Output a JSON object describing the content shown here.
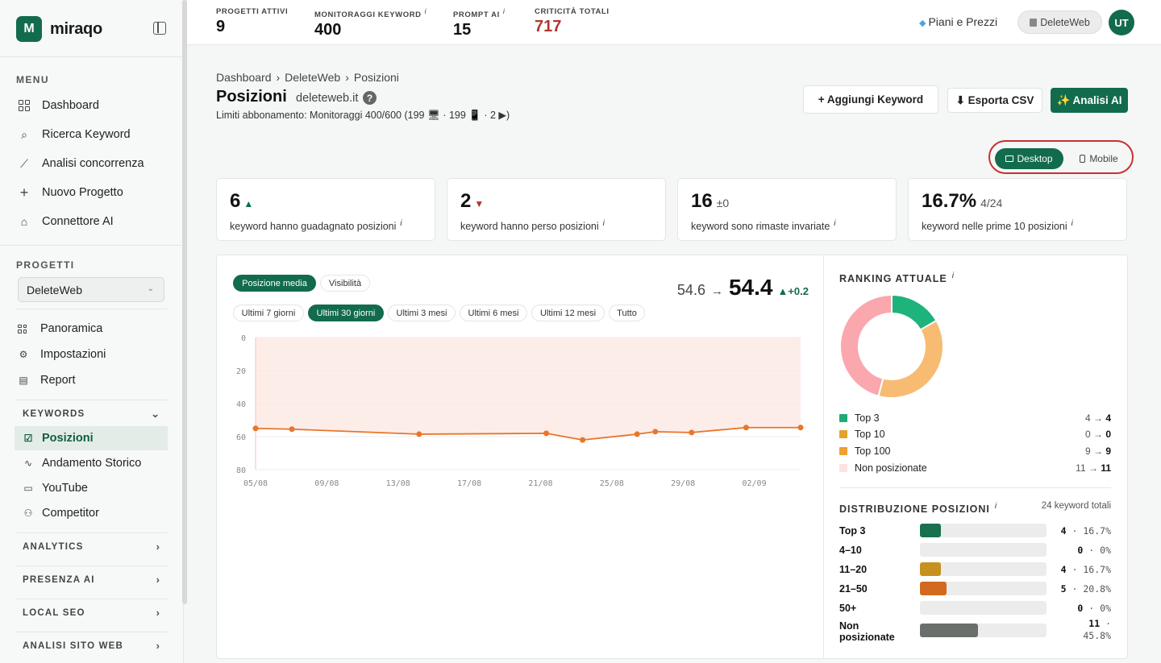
{
  "app": {
    "name": "miraqo"
  },
  "sidebar": {
    "menu_title": "MENU",
    "menu": [
      {
        "label": "Dashboard",
        "icon": "grid-icon"
      },
      {
        "label": "Ricerca Keyword",
        "icon": "search-icon"
      },
      {
        "label": "Analisi concorrenza",
        "icon": "trend-chart-icon"
      },
      {
        "label": "Nuovo Progetto",
        "icon": "plus-icon"
      },
      {
        "label": "Connettore AI",
        "icon": "robot-icon"
      }
    ],
    "projects_title": "PROGETTI",
    "project_selected": "DeleteWeb",
    "project_items": [
      {
        "label": "Panoramica",
        "icon": "grid-icon"
      },
      {
        "label": "Impostazioni",
        "icon": "gear-icon"
      },
      {
        "label": "Report",
        "icon": "document-icon"
      }
    ],
    "keywords_group": "KEYWORDS",
    "keyword_items": [
      {
        "label": "Posizioni",
        "icon": "check-square-icon",
        "active": true
      },
      {
        "label": "Andamento Storico",
        "icon": "pulse-icon"
      },
      {
        "label": "YouTube",
        "icon": "youtube-icon"
      },
      {
        "label": "Competitor",
        "icon": "users-icon"
      }
    ],
    "groups": [
      "ANALYTICS",
      "PRESENZA AI",
      "LOCAL SEO",
      "ANALISI SITO WEB"
    ]
  },
  "topbar": {
    "stats": [
      {
        "label": "PROGETTI ATTIVI",
        "value": "9",
        "info": ""
      },
      {
        "label": "MONITORAGGI KEYWORD",
        "value": "400",
        "info": "i"
      },
      {
        "label": "PROMPT AI",
        "value": "15",
        "info": "i"
      },
      {
        "label": "CRITICITÀ TOTALI",
        "value": "717",
        "info": ""
      }
    ],
    "plans": "Piani e Prezzi",
    "project": "DeleteWeb",
    "avatar": "UT"
  },
  "page": {
    "breadcrumb": [
      "Dashboard",
      "›",
      "DeleteWeb",
      "›",
      "Posizioni"
    ],
    "title": "Posizioni",
    "domain": "deleteweb.it",
    "help": "?",
    "limits": "Limiti abbonamento: Monitoraggi 400/600 (199 🖥 · 199 📱 · 2 ▶)",
    "buttons": {
      "add": "+ Aggiungi Keyword",
      "export": "⬇ Esporta CSV",
      "ai": "✨ Analisi AI"
    },
    "device": {
      "desktop": "Desktop",
      "mobile": "Mobile"
    }
  },
  "cards": [
    {
      "value": "6",
      "extra": "",
      "trend": "up",
      "desc": "keyword hanno guadagnato posizioni"
    },
    {
      "value": "2",
      "extra": "",
      "trend": "down",
      "desc": "keyword hanno perso posizioni"
    },
    {
      "value": "16",
      "extra": "±0",
      "trend": "",
      "desc": "keyword sono rimaste invariate"
    },
    {
      "value": "16.7%",
      "extra": "4/24",
      "trend": "",
      "desc": "keyword nelle prime 10 posizioni"
    }
  ],
  "chart_panel": {
    "metric_tabs": [
      "Posizione media",
      "Visibilità"
    ],
    "ranges": [
      "Ultimi 7 giorni",
      "Ultimi 30 giorni",
      "Ultimi 3 mesi",
      "Ultimi 6 mesi",
      "Ultimi 12 mesi",
      "Tutto"
    ],
    "from": "54.6",
    "arrow": "→",
    "to": "54.4",
    "delta": "▲+0.2"
  },
  "chart_data": {
    "type": "line",
    "x_ticks": [
      "05/08",
      "09/08",
      "13/08",
      "17/08",
      "21/08",
      "25/08",
      "29/08",
      "02/09"
    ],
    "y_ticks": [
      "0",
      "20",
      "40",
      "60",
      "80"
    ],
    "ylim": [
      0,
      80
    ],
    "y_inverted": true,
    "xlim": [
      0,
      30
    ],
    "series": [
      {
        "x": [
          0,
          2,
          9,
          16,
          18,
          21,
          22,
          24,
          27,
          30
        ],
        "y": [
          55,
          55.5,
          58.5,
          58,
          62,
          58.5,
          57,
          57.5,
          54.5,
          54.5
        ]
      }
    ],
    "line_color": "#e8762b",
    "fill_color": "#fde8e2"
  },
  "ranking": {
    "title": "RANKING ATTUALE",
    "info": "i",
    "legend": [
      {
        "label": "Top 3",
        "from": "4",
        "to": "4",
        "color": "#1faa78"
      },
      {
        "label": "Top 10",
        "from": "0",
        "to": "0",
        "color": "#e3a22a"
      },
      {
        "label": "Top 100",
        "from": "9",
        "to": "9",
        "color": "#f0a030"
      },
      {
        "label": "Non posizionate",
        "from": "11",
        "to": "11",
        "color": "#fde3df"
      }
    ],
    "donut": [
      {
        "value": 4,
        "color": "#1fb37c"
      },
      {
        "value": 9,
        "color": "#f8bb72"
      },
      {
        "value": 11,
        "color": "#fba7ae"
      }
    ]
  },
  "distribution": {
    "title": "DISTRIBUZIONE POSIZIONI",
    "info": "i",
    "total": "24 keyword totali",
    "rows": [
      {
        "label": "Top 3",
        "count": "4",
        "pct": "16.7%",
        "frac": 0.167,
        "color": "#18704f"
      },
      {
        "label": "4–10",
        "count": "0",
        "pct": "0%",
        "frac": 0,
        "color": "#18704f"
      },
      {
        "label": "11–20",
        "count": "4",
        "pct": "16.7%",
        "frac": 0.167,
        "color": "#c7911f"
      },
      {
        "label": "21–50",
        "count": "5",
        "pct": "20.8%",
        "frac": 0.208,
        "color": "#d2691e"
      },
      {
        "label": "50+",
        "count": "0",
        "pct": "0%",
        "frac": 0,
        "color": "#888"
      },
      {
        "label": "Non posizionate",
        "count": "11",
        "pct": "45.8%",
        "frac": 0.458,
        "color": "#6a6f6b"
      }
    ]
  }
}
